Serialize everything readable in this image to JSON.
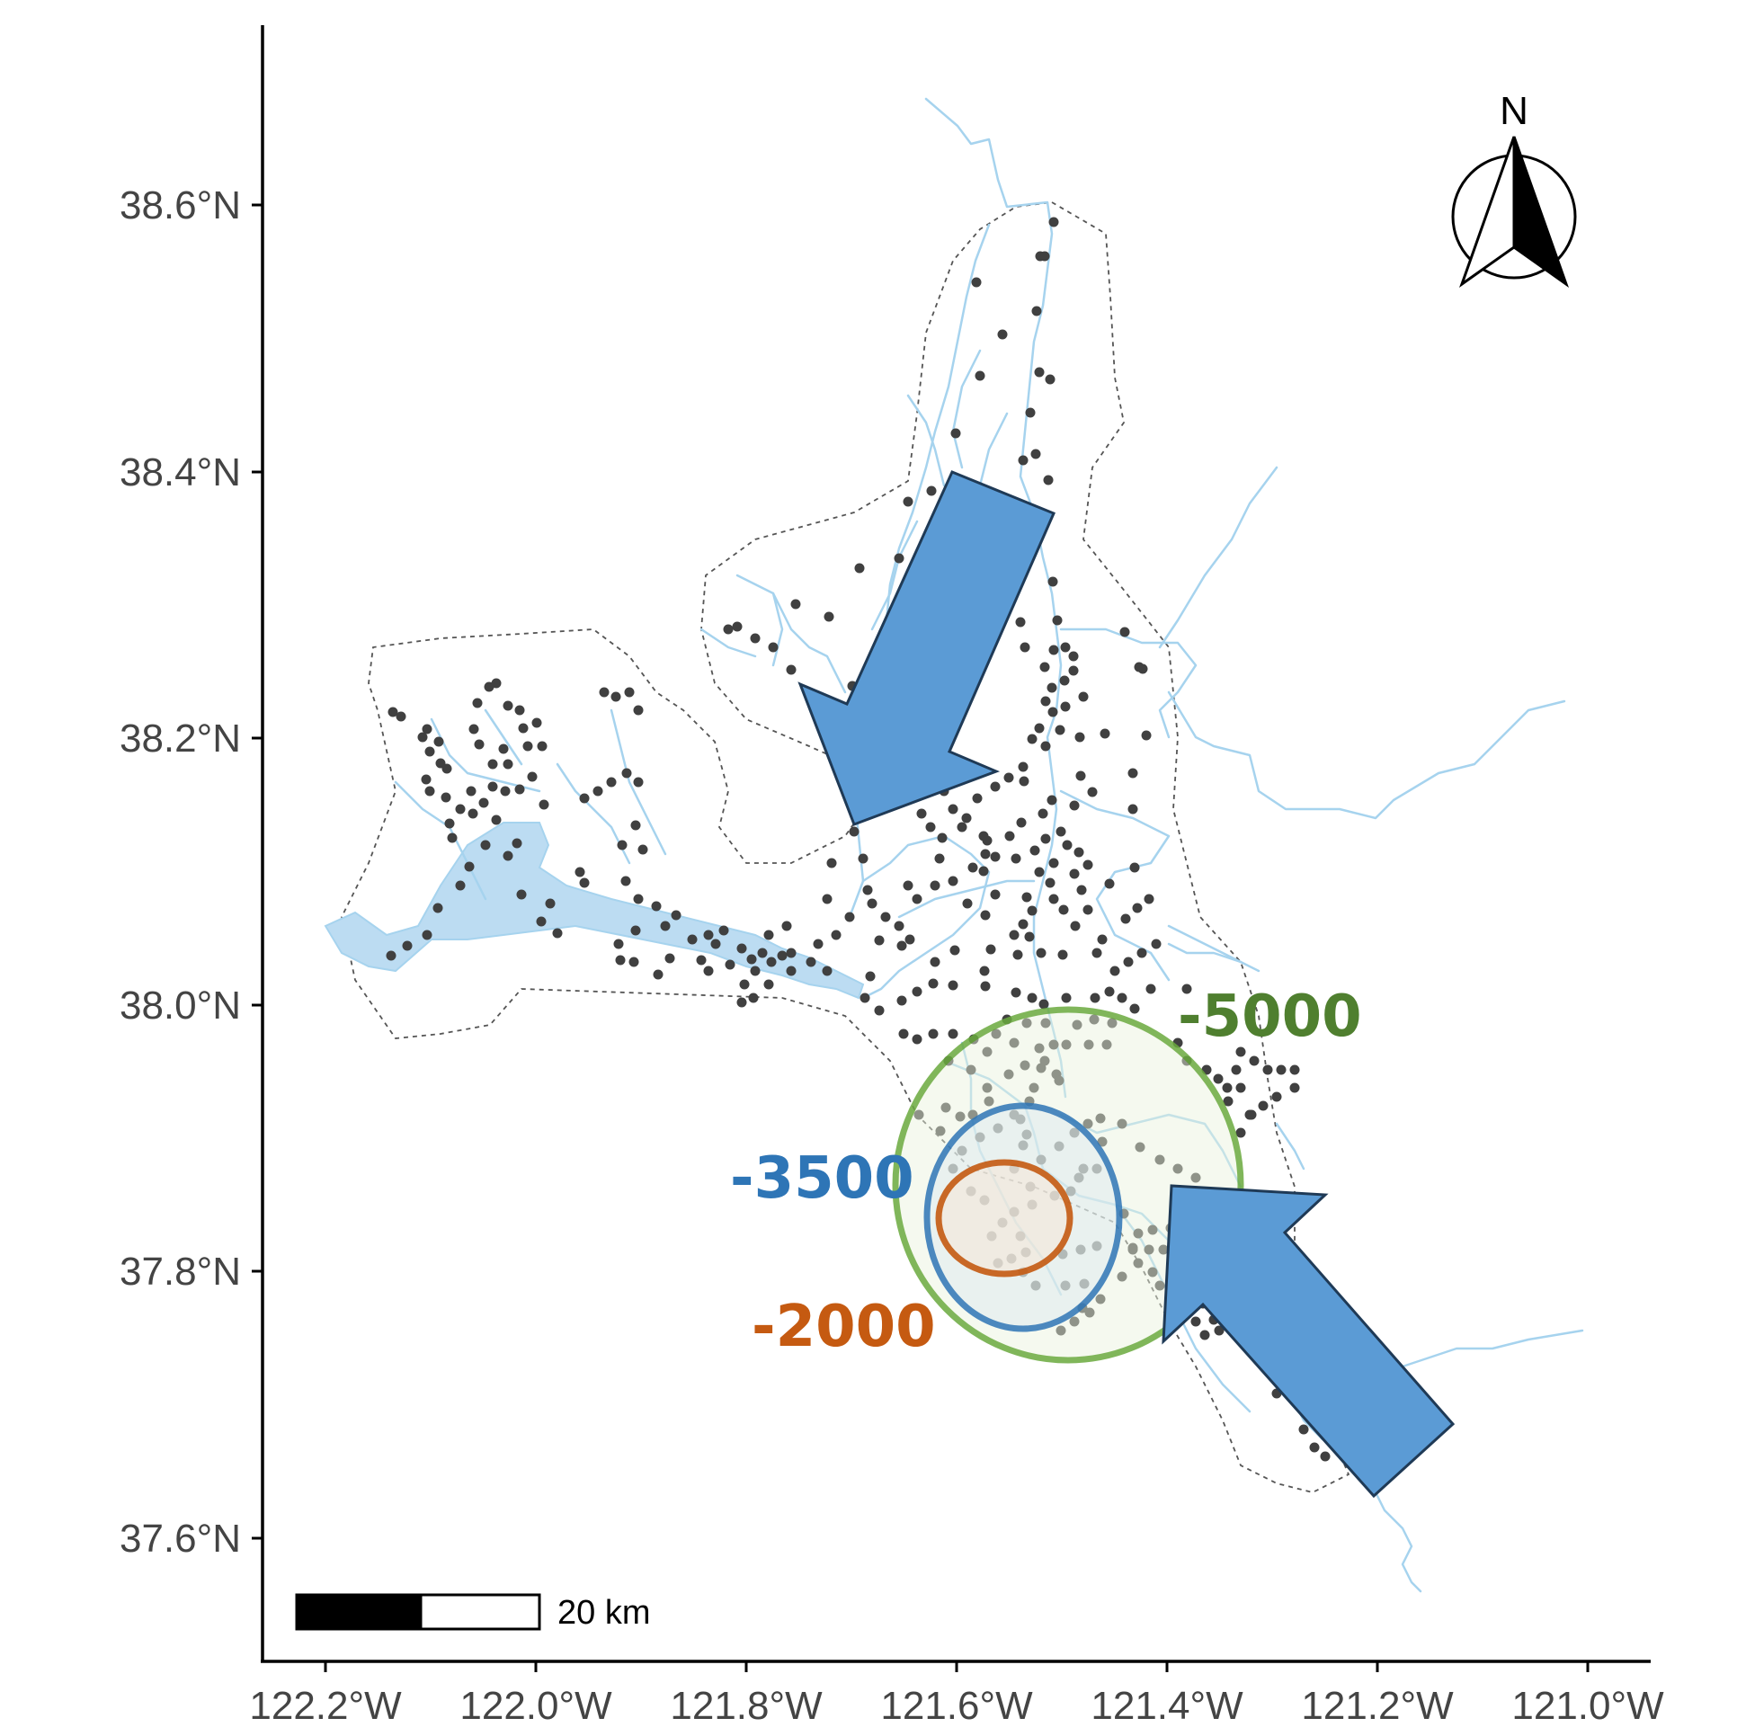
{
  "x_ticks": [
    "122.2°W",
    "122.0°W",
    "121.8°W",
    "121.6°W",
    "121.4°W",
    "121.2°W",
    "121.0°W"
  ],
  "y_ticks": [
    "38.6°N",
    "38.4°N",
    "38.2°N",
    "38.0°N",
    "37.8°N",
    "37.6°N"
  ],
  "north_label": "N",
  "scale_bar_label": "20 km",
  "contours": [
    {
      "label": "-5000",
      "color": "#4f7f2f",
      "stroke": "#6aaa3e",
      "fill": "#e9f2dc"
    },
    {
      "label": "-3500",
      "color": "#2e75b6",
      "stroke": "#2e75b6",
      "fill": "#dbe7ef"
    },
    {
      "label": "-2000",
      "color": "#c55a11",
      "stroke": "#c55a11",
      "fill": "#f5e3d3"
    }
  ],
  "arrow_color": "#5b9bd5",
  "station_color": "#404040",
  "water_color": "#a6d3ee"
}
